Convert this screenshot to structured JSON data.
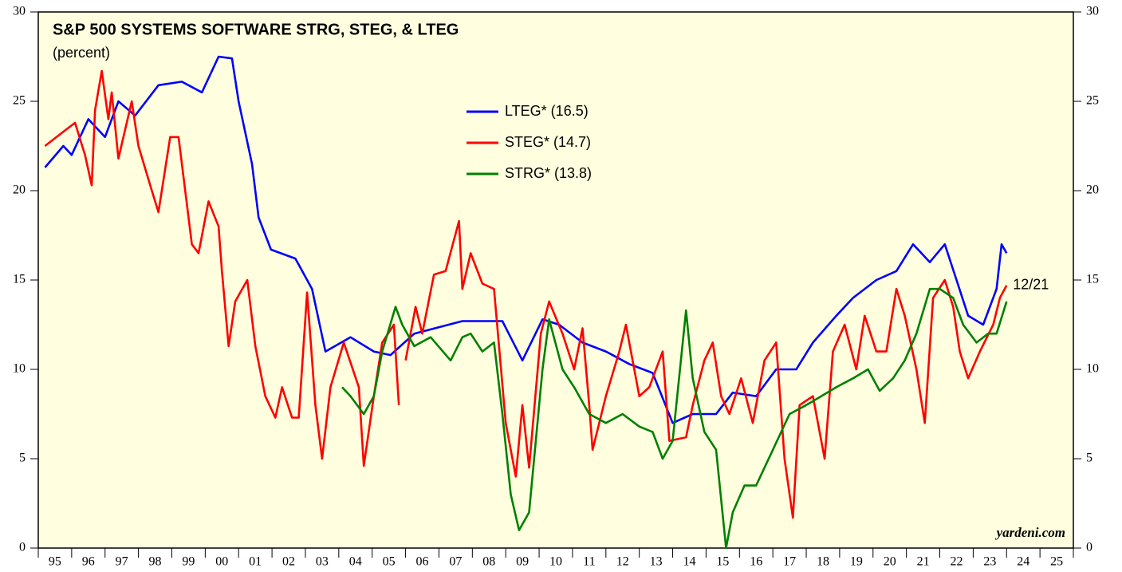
{
  "chart_data": {
    "type": "line",
    "title": "S&P 500 SYSTEMS SOFTWARE STRG, STEG, & LTEG",
    "subtitle": "(percent)",
    "source": "yardeni.com",
    "annotations": [
      {
        "text": "12/21",
        "color": "#ff0000"
      }
    ],
    "legend": "upper center",
    "background": "#ffffe0",
    "xlim": [
      1995,
      2026
    ],
    "xticks": [
      1995,
      1996,
      1997,
      1998,
      1999,
      2000,
      2001,
      2002,
      2003,
      2004,
      2005,
      2006,
      2007,
      2008,
      2009,
      2010,
      2011,
      2012,
      2013,
      2014,
      2015,
      2016,
      2017,
      2018,
      2019,
      2020,
      2021,
      2022,
      2023,
      2024,
      2025,
      2026
    ],
    "year_labels": [
      "95",
      "96",
      "97",
      "98",
      "99",
      "00",
      "01",
      "02",
      "03",
      "04",
      "05",
      "06",
      "07",
      "08",
      "09",
      "10",
      "11",
      "12",
      "13",
      "14",
      "15",
      "16",
      "17",
      "18",
      "19",
      "20",
      "21",
      "22",
      "23",
      "24",
      "25"
    ],
    "ylim": [
      0,
      30
    ],
    "yticks": [
      0,
      5,
      10,
      15,
      20,
      25,
      30
    ],
    "series": [
      {
        "name": "LTEG* (16.5)",
        "color": "#0000ff",
        "x": [
          1995.2,
          1995.75,
          1996.0,
          1996.5,
          1997.0,
          1997.4,
          1997.9,
          1998.6,
          1999.3,
          1999.9,
          2000.4,
          2000.8,
          2001.0,
          2001.4,
          2001.6,
          2001.97,
          2002.7,
          2003.2,
          2003.6,
          2004.35,
          2005.05,
          2005.55,
          2006.26,
          2007.7,
          2008.9,
          2009.5,
          2010.1,
          2010.6,
          2011.3,
          2012.0,
          2012.7,
          2013.4,
          2014.0,
          2014.6,
          2015.3,
          2015.8,
          2016.5,
          2017.1,
          2017.7,
          2018.2,
          2018.9,
          2019.4,
          2020.1,
          2020.7,
          2021.2,
          2021.7,
          2022.15,
          2022.5,
          2022.85,
          2023.3,
          2023.7,
          2023.85,
          2024.0
        ],
        "values": [
          21.3,
          22.5,
          22.0,
          24.0,
          23.0,
          25.0,
          24.2,
          25.9,
          26.1,
          25.5,
          27.5,
          27.4,
          25.0,
          21.5,
          18.5,
          16.7,
          16.2,
          14.5,
          11.0,
          11.8,
          11.0,
          10.8,
          12.0,
          12.7,
          12.7,
          10.5,
          12.8,
          12.5,
          11.5,
          11.0,
          10.3,
          9.8,
          7.0,
          7.5,
          7.5,
          8.7,
          8.5,
          10.0,
          10.0,
          11.5,
          13.0,
          14.0,
          15.0,
          15.5,
          17.0,
          16.0,
          17.0,
          15.0,
          13.0,
          12.5,
          14.5,
          17.0,
          16.5
        ]
      },
      {
        "name": "STEG* (14.7)",
        "color": "#ff0000",
        "x": [
          1995.2,
          1995.75,
          1996.1,
          1996.4,
          1996.6,
          1996.7,
          1996.9,
          1997.1,
          1997.2,
          1997.4,
          1997.8,
          1998.0,
          1998.4,
          1998.6,
          1998.95,
          1999.2,
          1999.6,
          1999.8,
          2000.1,
          2000.4,
          2000.5,
          2000.7,
          2000.9,
          2001.26,
          2001.5,
          2001.8,
          2002.1,
          2002.3,
          2002.6,
          2002.8,
          2003.05,
          2003.3,
          2003.5,
          2003.75,
          2004.15,
          2004.6,
          2004.75,
          2005.05,
          2005.3,
          2005.65,
          2005.8,
          2005.9,
          2006.0,
          2006.1,
          2006.3,
          2006.5,
          2006.85,
          2007.2,
          2007.6,
          2007.7,
          2007.95,
          2008.3,
          2008.65,
          2009.0,
          2009.3,
          2009.5,
          2009.7,
          2010.05,
          2010.3,
          2010.7,
          2011.05,
          2011.3,
          2011.5,
          2011.6,
          2012.0,
          2012.4,
          2012.6,
          2013.0,
          2013.3,
          2013.7,
          2013.9,
          2014.4,
          2014.6,
          2014.95,
          2015.2,
          2015.45,
          2015.7,
          2016.05,
          2016.4,
          2016.75,
          2017.1,
          2017.35,
          2017.6,
          2017.8,
          2018.2,
          2018.55,
          2018.8,
          2019.15,
          2019.5,
          2019.75,
          2020.1,
          2020.4,
          2020.7,
          2020.95,
          2021.3,
          2021.55,
          2021.8,
          2022.15,
          2022.4,
          2022.6,
          2022.85,
          2023.2,
          2023.6,
          2023.8,
          2024.0
        ],
        "values": [
          22.5,
          23.3,
          23.8,
          22.0,
          20.3,
          24.5,
          26.7,
          24.0,
          25.5,
          21.8,
          25.0,
          22.5,
          20.0,
          18.8,
          23.0,
          23.0,
          17.0,
          16.5,
          19.4,
          18.0,
          15.5,
          11.3,
          13.8,
          15.0,
          11.3,
          8.5,
          7.3,
          9.0,
          7.3,
          7.3,
          14.3,
          8.0,
          5.0,
          9.0,
          11.5,
          9.0,
          4.6,
          8.5,
          11.5,
          12.5,
          8.0,
          null,
          10.5,
          11.5,
          13.5,
          12.0,
          15.3,
          15.5,
          18.3,
          14.5,
          16.5,
          14.8,
          14.5,
          7.0,
          4.0,
          8.0,
          4.5,
          12.0,
          13.8,
          12.0,
          10.0,
          12.3,
          8.0,
          5.5,
          8.5,
          11.0,
          12.5,
          8.5,
          9.0,
          11.0,
          6.0,
          6.2,
          8.0,
          10.5,
          11.5,
          8.5,
          7.5,
          9.5,
          7.0,
          10.5,
          11.5,
          5.0,
          1.7,
          8.0,
          8.5,
          5.0,
          11.0,
          12.5,
          10.0,
          13.0,
          11.0,
          11.0,
          14.5,
          13.0,
          10.0,
          7.0,
          14.0,
          15.0,
          13.5,
          11.0,
          9.5,
          11.0,
          12.5,
          14.0,
          14.7
        ]
      },
      {
        "name": "STRG* (13.8)",
        "color": "#008000",
        "x": [
          2004.1,
          2004.35,
          2004.75,
          2005.05,
          2005.3,
          2005.7,
          2005.9,
          2006.26,
          2006.75,
          2007.35,
          2007.7,
          2007.95,
          2008.3,
          2008.65,
          2008.9,
          2009.15,
          2009.4,
          2009.7,
          2010.1,
          2010.3,
          2010.7,
          2011.05,
          2011.5,
          2012.0,
          2012.5,
          2013.0,
          2013.4,
          2013.7,
          2014.0,
          2014.4,
          2014.6,
          2014.95,
          2015.3,
          2015.6,
          2015.8,
          2016.15,
          2016.5,
          2017.0,
          2017.5,
          2018.0,
          2018.45,
          2018.9,
          2019.4,
          2019.85,
          2020.2,
          2020.6,
          2020.95,
          2021.3,
          2021.7,
          2022.0,
          2022.4,
          2022.7,
          2023.1,
          2023.45,
          2023.7,
          2024.0
        ],
        "values": [
          9.0,
          8.5,
          7.5,
          8.5,
          11.0,
          13.5,
          12.5,
          11.3,
          11.8,
          10.5,
          11.8,
          12.0,
          11.0,
          11.5,
          7.5,
          3.0,
          1.0,
          2.0,
          10.0,
          12.8,
          10.0,
          9.0,
          7.5,
          7.0,
          7.5,
          6.8,
          6.5,
          5.0,
          6.0,
          13.3,
          9.5,
          6.5,
          5.5,
          0.0,
          2.0,
          3.5,
          3.5,
          5.5,
          7.5,
          8.0,
          8.5,
          9.0,
          9.5,
          10.0,
          8.8,
          9.5,
          10.5,
          12.0,
          14.5,
          14.5,
          14.0,
          12.5,
          11.5,
          12.0,
          12.0,
          13.8
        ]
      }
    ]
  }
}
